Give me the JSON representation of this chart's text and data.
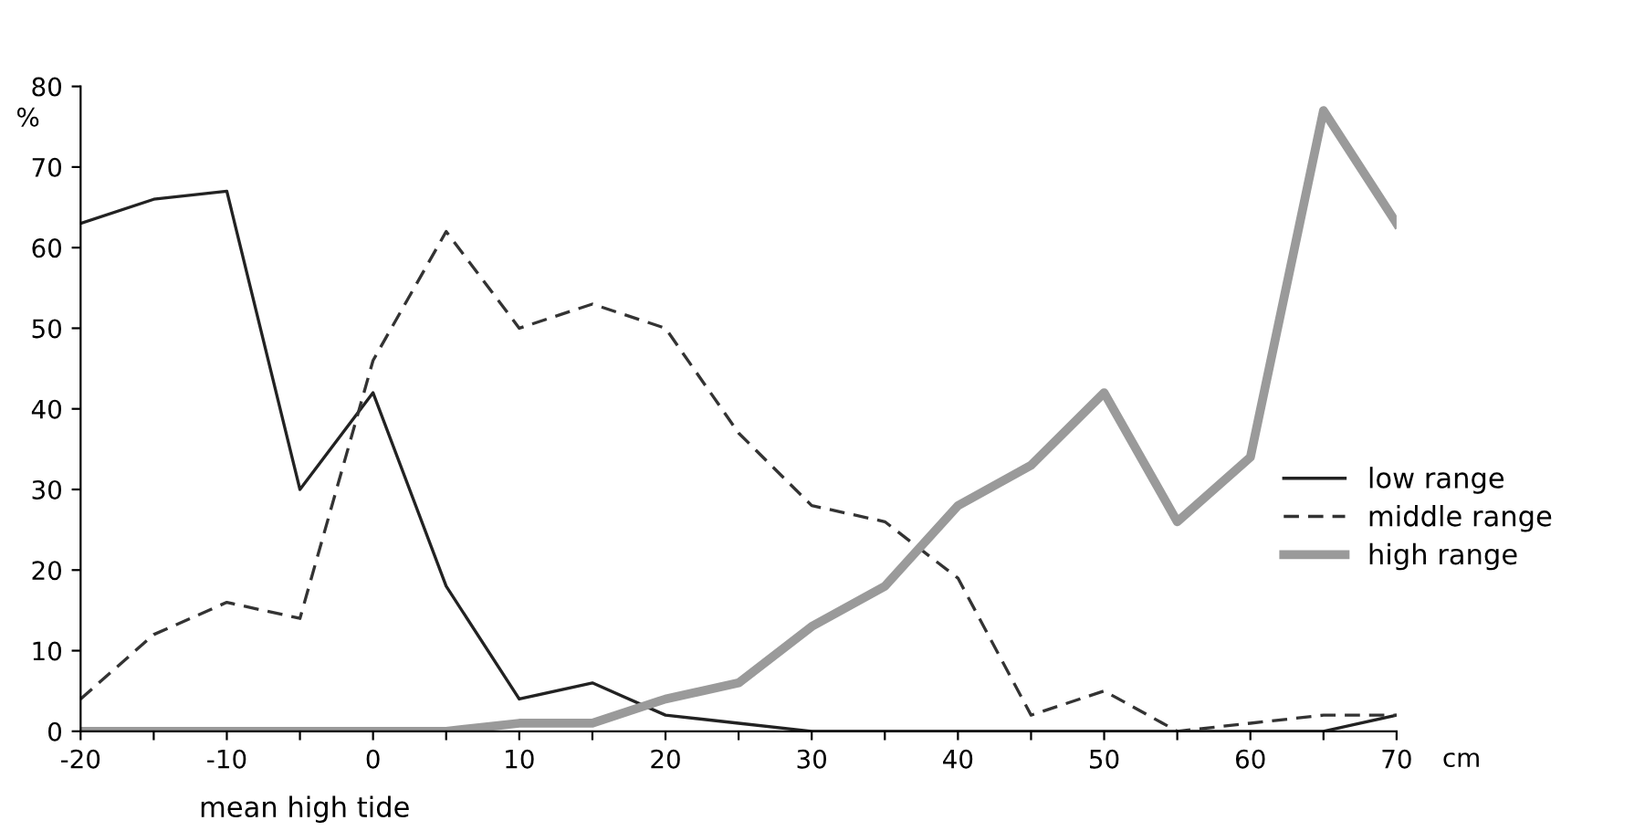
{
  "chart_data": {
    "type": "line",
    "ylabel": "%",
    "xlabel": "mean high tide",
    "annotations": [
      "cm"
    ],
    "x": [
      -20,
      -15,
      -10,
      -5,
      0,
      5,
      10,
      15,
      20,
      25,
      30,
      35,
      40,
      45,
      50,
      55,
      60,
      65,
      70
    ],
    "xlim": [
      -20,
      70
    ],
    "xticks": [
      -20,
      {
        "value": -15,
        "label": null
      },
      -10,
      {
        "value": -5,
        "label": null
      },
      0,
      {
        "value": 5,
        "label": null
      },
      10,
      {
        "value": 15,
        "label": null
      },
      20,
      {
        "value": 25,
        "label": null
      },
      30,
      {
        "value": 35,
        "label": null
      },
      40,
      {
        "value": 45,
        "label": null
      },
      50,
      {
        "value": 55,
        "label": null
      },
      60,
      {
        "value": 65,
        "label": null
      },
      70
    ],
    "ylim": [
      0,
      80
    ],
    "yticks": [
      0,
      10,
      20,
      30,
      40,
      50,
      60,
      70,
      80
    ],
    "grid": false,
    "legend": "right",
    "marker": "none",
    "series": [
      {
        "name": "low range",
        "color": "#222222",
        "line_style": "solid",
        "values": [
          63,
          66,
          67,
          30,
          42,
          18,
          4,
          6,
          2,
          1,
          0,
          0,
          0,
          0,
          0,
          0,
          0,
          0,
          2
        ]
      },
      {
        "name": "middle range",
        "color": "#333333",
        "line_style": "dashed",
        "values": [
          4,
          12,
          16,
          14,
          46,
          62,
          50,
          53,
          50,
          37,
          28,
          26,
          19,
          2,
          5,
          0,
          1,
          2,
          2
        ]
      },
      {
        "name": "high range",
        "color": "#9a9a9a",
        "line_style": "solid",
        "values": [
          0,
          0,
          0,
          0,
          0,
          0,
          1,
          1,
          4,
          6,
          13,
          18,
          28,
          33,
          42,
          26,
          34,
          77,
          63
        ]
      }
    ]
  }
}
